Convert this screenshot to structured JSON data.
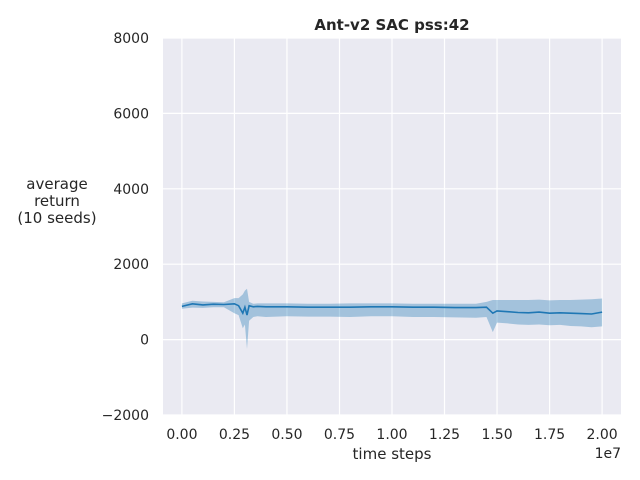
{
  "chart_data": {
    "type": "line",
    "title": "Ant-v2 SAC pss:42",
    "xlabel": "time steps",
    "ylabel_lines": [
      "average",
      "return",
      "(10 seeds)"
    ],
    "x_offset_label": "1e7",
    "xlim": [
      -0.09,
      2.09
    ],
    "ylim": [
      -2000,
      8000
    ],
    "x_ticks": [
      0.0,
      0.25,
      0.5,
      0.75,
      1.0,
      1.25,
      1.5,
      1.75,
      2.0
    ],
    "x_tick_labels": [
      "0.00",
      "0.25",
      "0.50",
      "0.75",
      "1.00",
      "1.25",
      "1.50",
      "1.75",
      "2.00"
    ],
    "y_ticks": [
      -2000,
      0,
      2000,
      4000,
      6000,
      8000
    ],
    "y_tick_labels": [
      "−2000",
      "0",
      "2000",
      "4000",
      "6000",
      "8000"
    ],
    "grid": true,
    "colors": {
      "background": "#eaeaf2",
      "grid": "#ffffff",
      "line": "#1f77b4",
      "band": "#1f77b4"
    },
    "series": [
      {
        "x": [
          0.0,
          0.05,
          0.1,
          0.15,
          0.2,
          0.25,
          0.27,
          0.29,
          0.3,
          0.31,
          0.32,
          0.34,
          0.36,
          0.4,
          0.5,
          0.6,
          0.7,
          0.8,
          0.9,
          1.0,
          1.1,
          1.2,
          1.3,
          1.4,
          1.45,
          1.48,
          1.5,
          1.55,
          1.6,
          1.65,
          1.7,
          1.75,
          1.8,
          1.85,
          1.9,
          1.95,
          2.0
        ],
        "mean": [
          880,
          950,
          920,
          940,
          930,
          950,
          900,
          700,
          860,
          650,
          900,
          870,
          880,
          870,
          870,
          860,
          860,
          860,
          870,
          870,
          860,
          860,
          850,
          850,
          860,
          700,
          760,
          740,
          720,
          710,
          730,
          700,
          710,
          700,
          690,
          680,
          730
        ],
        "lower": [
          820,
          850,
          840,
          860,
          860,
          700,
          650,
          300,
          400,
          -250,
          500,
          600,
          620,
          600,
          620,
          610,
          610,
          600,
          620,
          620,
          600,
          600,
          590,
          580,
          600,
          200,
          450,
          430,
          400,
          390,
          400,
          380,
          390,
          360,
          350,
          330,
          350
        ],
        "upper": [
          960,
          1030,
          1010,
          1000,
          990,
          1100,
          1100,
          1200,
          1300,
          1350,
          1000,
          950,
          960,
          960,
          960,
          950,
          950,
          960,
          960,
          960,
          950,
          950,
          950,
          950,
          1000,
          1050,
          1050,
          1050,
          1050,
          1050,
          1060,
          1040,
          1050,
          1050,
          1060,
          1070,
          1090
        ]
      }
    ]
  }
}
